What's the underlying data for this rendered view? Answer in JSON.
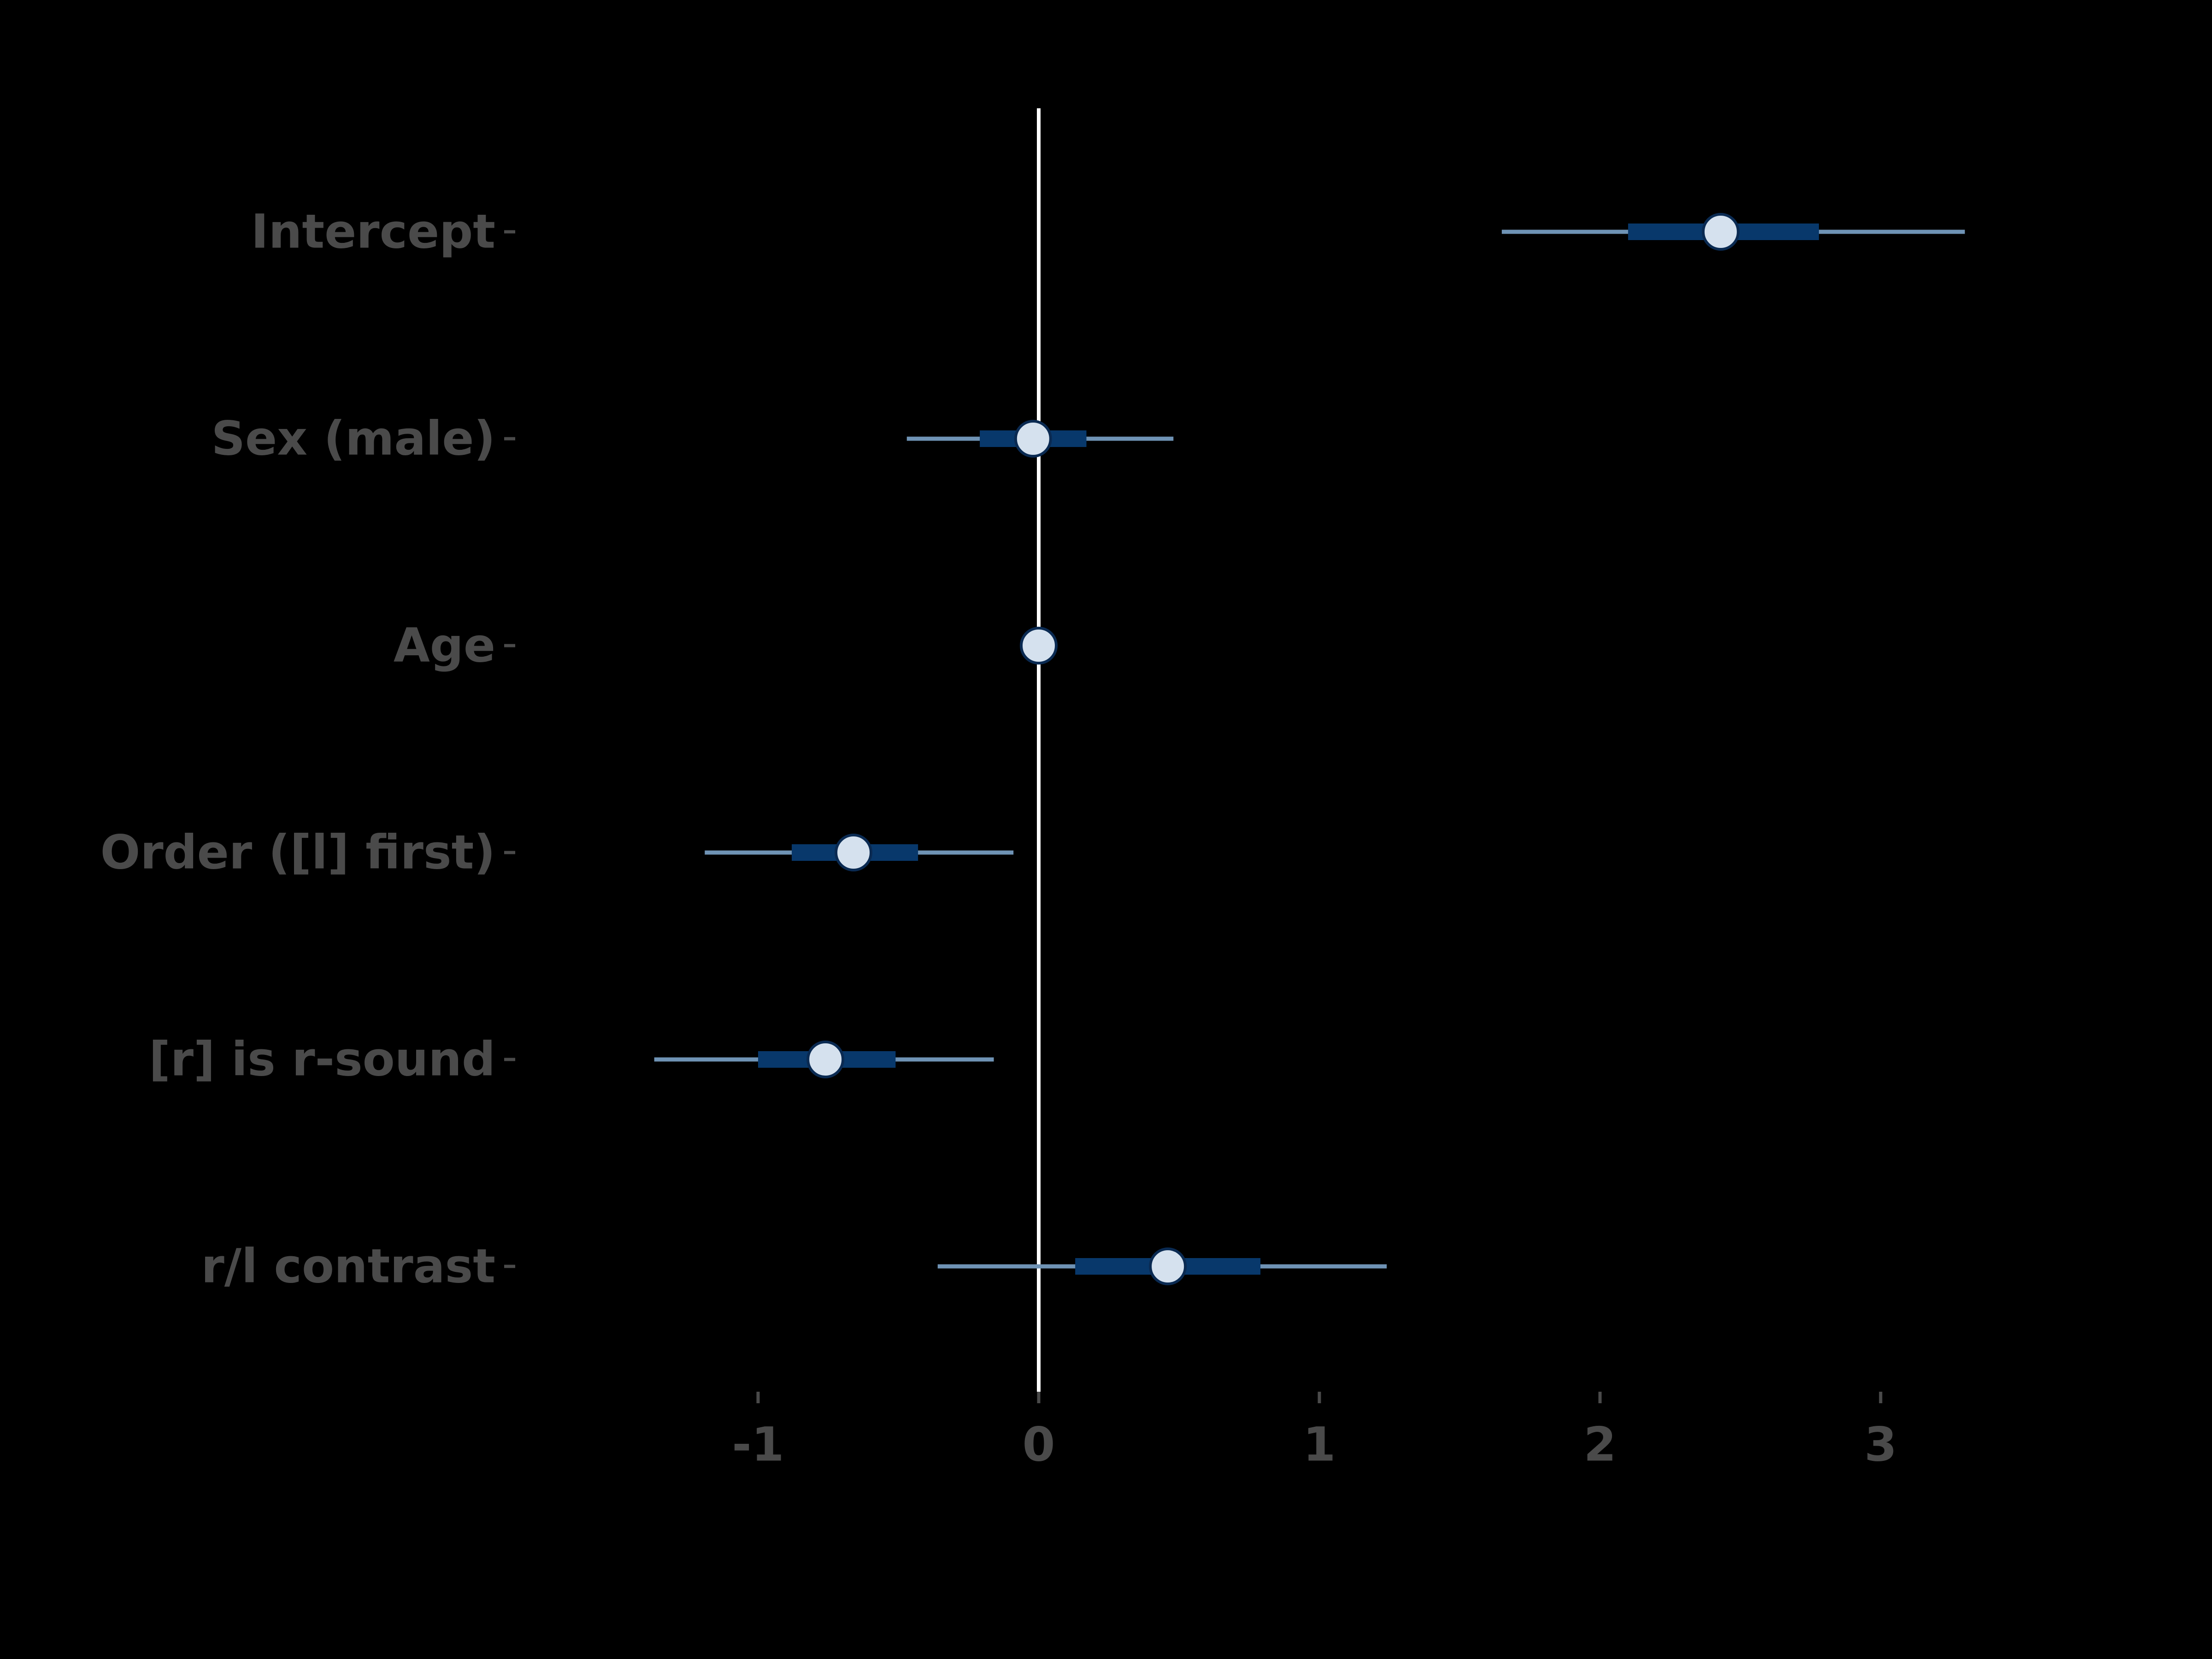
{
  "chart_data": {
    "type": "forest",
    "categories": [
      "Intercept",
      "Sex (male)",
      "Age",
      "Order ([l] first)",
      "[r] is r-sound",
      "r/l contrast"
    ],
    "estimates": [
      2.43,
      -0.02,
      0.0,
      -0.66,
      -0.76,
      0.46
    ],
    "inner_interval": [
      [
        2.1,
        2.78
      ],
      [
        -0.21,
        0.17
      ],
      [
        -0.01,
        0.01
      ],
      [
        -0.88,
        -0.43
      ],
      [
        -1.0,
        -0.51
      ],
      [
        0.13,
        0.79
      ]
    ],
    "outer_interval": [
      [
        1.65,
        3.3
      ],
      [
        -0.47,
        0.48
      ],
      [
        -0.02,
        0.02
      ],
      [
        -1.19,
        -0.09
      ],
      [
        -1.37,
        -0.16
      ],
      [
        -0.36,
        1.24
      ]
    ],
    "x_ticks": [
      "-1",
      "0",
      "1",
      "2",
      "3"
    ],
    "x_tick_values": [
      -1,
      0,
      1,
      2,
      3
    ],
    "xlim": [
      -1.5,
      3.6
    ],
    "reference_line": 0,
    "colors": {
      "background": "#000000",
      "text": "#4a4a4a",
      "outer_interval": "#6f93b5",
      "inner_interval": "#08386b",
      "point_fill": "#d5e1ee",
      "point_stroke": "#0a2a52",
      "reference_line": "#ffffff"
    }
  }
}
